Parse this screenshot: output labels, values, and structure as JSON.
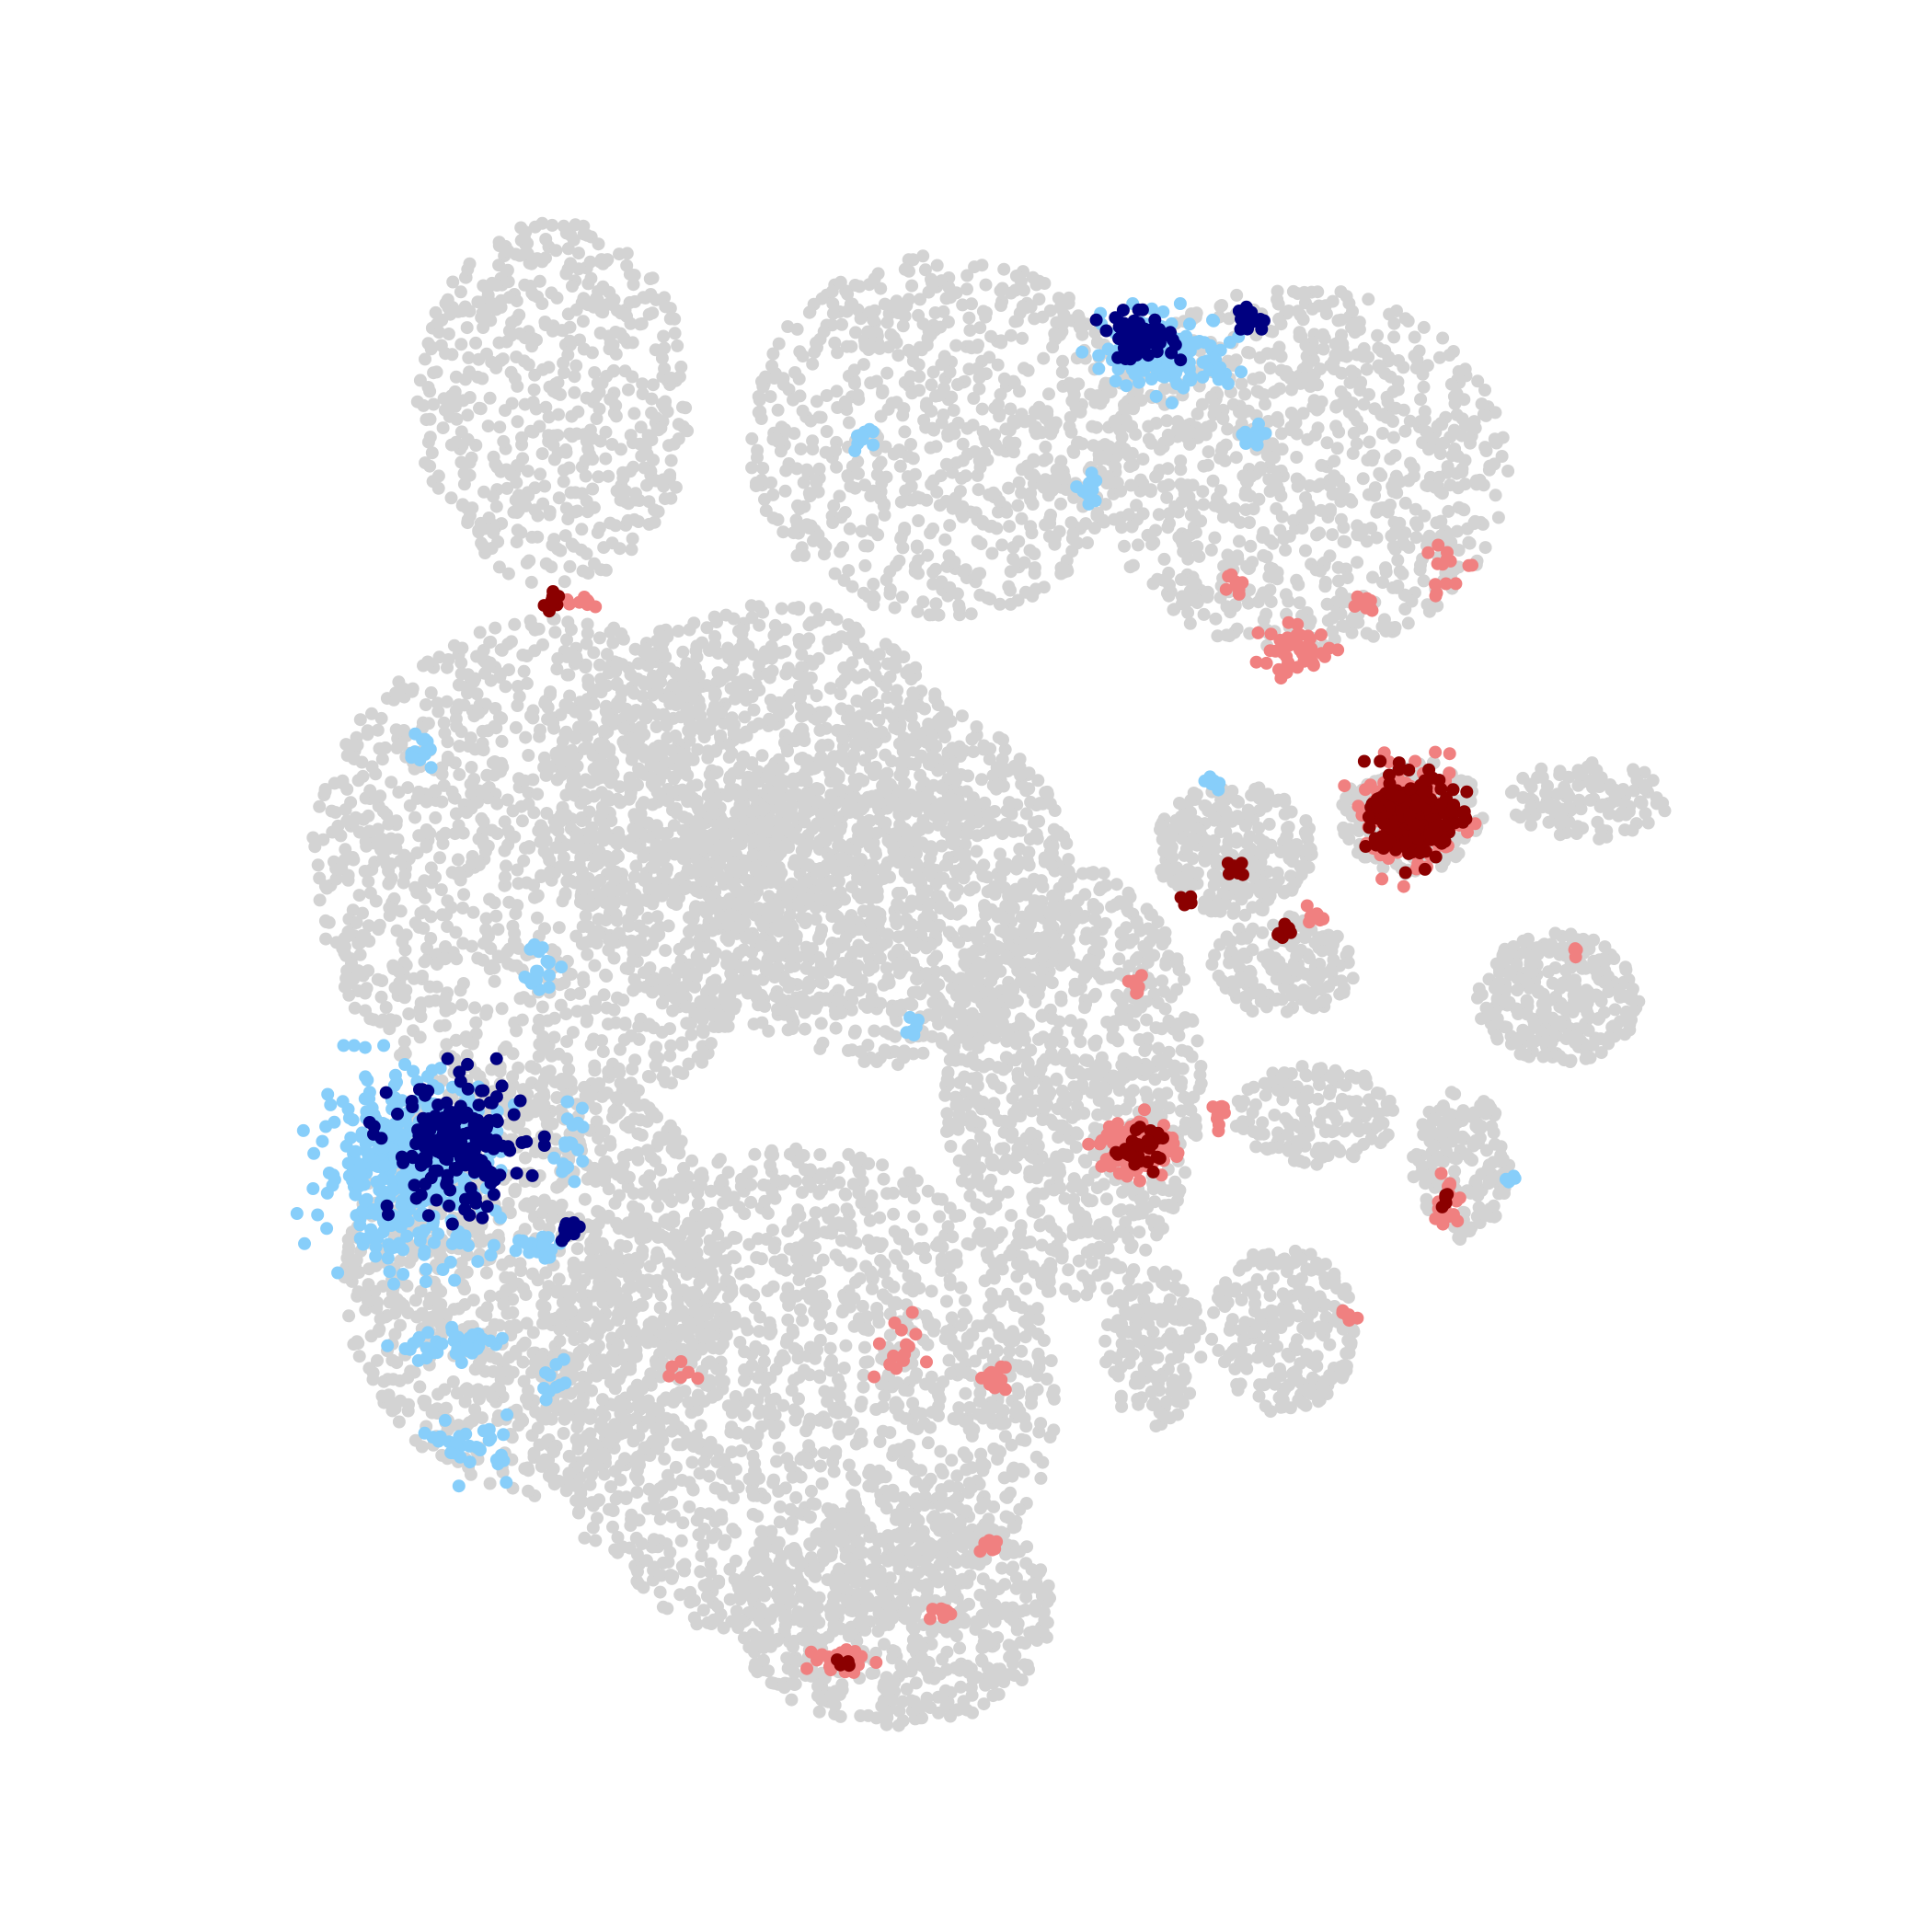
{
  "chart_data": {
    "type": "scatter",
    "title": "",
    "xlabel": "",
    "ylabel": "",
    "axes_visible": false,
    "grid": false,
    "legend": "none",
    "xlim": [
      0,
      100
    ],
    "ylim": [
      0,
      100
    ],
    "background": {
      "name": "background-cells",
      "color": "#d3d3d3",
      "regions": [
        {
          "id": "cluster-top-left",
          "cx": 24,
          "cy": 84,
          "rx": 8.5,
          "ry": 11,
          "n": 560
        },
        {
          "id": "cluster-top-middle",
          "cx": 48,
          "cy": 82,
          "rx": 12,
          "ry": 11,
          "n": 760
        },
        {
          "id": "cluster-top-right",
          "cx": 70,
          "cy": 80,
          "rx": 13,
          "ry": 11,
          "n": 880
        },
        {
          "id": "cluster-left-large",
          "cx": 24,
          "cy": 56,
          "rx": 15,
          "ry": 15,
          "n": 1300
        },
        {
          "id": "cluster-center",
          "cx": 37,
          "cy": 59,
          "rx": 13,
          "ry": 13,
          "n": 1200
        },
        {
          "id": "cluster-center-upper",
          "cx": 45,
          "cy": 55,
          "rx": 11,
          "ry": 11,
          "n": 880
        },
        {
          "id": "cluster-lower-left",
          "cx": 23,
          "cy": 31,
          "rx": 12,
          "ry": 13,
          "n": 1050
        },
        {
          "id": "cluster-lower-middle",
          "cx": 39,
          "cy": 24,
          "rx": 16,
          "ry": 15,
          "n": 1500
        },
        {
          "id": "cluster-bottom",
          "cx": 45,
          "cy": 11,
          "rx": 10,
          "ry": 7,
          "n": 650
        },
        {
          "id": "cluster-mid-right",
          "cx": 56,
          "cy": 43,
          "rx": 8,
          "ry": 13,
          "n": 900
        },
        {
          "id": "cluster-right-small-1",
          "cx": 66,
          "cy": 57,
          "rx": 5,
          "ry": 4,
          "n": 260
        },
        {
          "id": "cluster-right-small-2",
          "cx": 69,
          "cy": 50,
          "rx": 4.5,
          "ry": 3,
          "n": 160
        },
        {
          "id": "cluster-right-small-3",
          "cx": 71,
          "cy": 41,
          "rx": 5,
          "ry": 3,
          "n": 160
        },
        {
          "id": "cluster-right-small-4",
          "cx": 69,
          "cy": 28,
          "rx": 4.5,
          "ry": 5,
          "n": 240
        },
        {
          "id": "cluster-right-small-5",
          "cx": 61,
          "cy": 27,
          "rx": 3,
          "ry": 5,
          "n": 160
        },
        {
          "id": "cluster-right-blob",
          "cx": 77,
          "cy": 59,
          "rx": 4.5,
          "ry": 3.5,
          "n": 180
        },
        {
          "id": "cluster-far-right",
          "cx": 86,
          "cy": 48,
          "rx": 5,
          "ry": 4,
          "n": 280
        },
        {
          "id": "cluster-far-right-lower",
          "cx": 80,
          "cy": 38,
          "rx": 3,
          "ry": 4.5,
          "n": 170
        },
        {
          "id": "cluster-far-right-tail",
          "cx": 88,
          "cy": 60,
          "rx": 5,
          "ry": 2.5,
          "n": 120
        }
      ]
    },
    "series": [
      {
        "color": "#87cefa",
        "clusters": [
          {
            "cx": 15,
            "cy": 38,
            "rx": 6,
            "ry": 6,
            "n": 420
          },
          {
            "cx": 62,
            "cy": 87,
            "rx": 4.5,
            "ry": 2.5,
            "n": 140
          },
          {
            "cx": 23,
            "cy": 33,
            "rx": 2,
            "ry": 1,
            "n": 20
          },
          {
            "cx": 18,
            "cy": 27,
            "rx": 4,
            "ry": 1,
            "n": 40
          },
          {
            "cx": 19,
            "cy": 21,
            "rx": 2.5,
            "ry": 2,
            "n": 30
          },
          {
            "cx": 23,
            "cy": 50,
            "rx": 1.2,
            "ry": 1.8,
            "n": 20
          },
          {
            "cx": 16,
            "cy": 63,
            "rx": 1.2,
            "ry": 1.2,
            "n": 12
          },
          {
            "cx": 43,
            "cy": 82,
            "rx": 1,
            "ry": 1,
            "n": 10
          },
          {
            "cx": 57,
            "cy": 79,
            "rx": 1,
            "ry": 1,
            "n": 10
          },
          {
            "cx": 67,
            "cy": 82,
            "rx": 1,
            "ry": 1,
            "n": 10
          },
          {
            "cx": 65,
            "cy": 61,
            "rx": 1,
            "ry": 0.5,
            "n": 8
          },
          {
            "cx": 46,
            "cy": 46,
            "rx": 0.8,
            "ry": 0.8,
            "n": 6
          },
          {
            "cx": 24,
            "cy": 25,
            "rx": 1,
            "ry": 1.5,
            "n": 10
          },
          {
            "cx": 25,
            "cy": 39,
            "rx": 1,
            "ry": 3,
            "n": 20
          },
          {
            "cx": 83,
            "cy": 37,
            "rx": 0.5,
            "ry": 0.5,
            "n": 4
          }
        ]
      },
      {
        "color": "#000080",
        "clusters": [
          {
            "cx": 18,
            "cy": 39,
            "rx": 4.5,
            "ry": 4.5,
            "n": 180
          },
          {
            "cx": 25,
            "cy": 34,
            "rx": 0.7,
            "ry": 0.7,
            "n": 12
          },
          {
            "cx": 60,
            "cy": 88,
            "rx": 2.5,
            "ry": 1.5,
            "n": 60
          },
          {
            "cx": 67,
            "cy": 89,
            "rx": 1.2,
            "ry": 0.8,
            "n": 22
          }
        ]
      },
      {
        "color": "#f08080",
        "clusters": [
          {
            "cx": 60,
            "cy": 39,
            "rx": 2.5,
            "ry": 2,
            "n": 90
          },
          {
            "cx": 77,
            "cy": 59,
            "rx": 3.5,
            "ry": 3.5,
            "n": 120
          },
          {
            "cx": 70,
            "cy": 69,
            "rx": 3,
            "ry": 1.5,
            "n": 50
          },
          {
            "cx": 79,
            "cy": 36,
            "rx": 1,
            "ry": 2,
            "n": 20
          },
          {
            "cx": 42,
            "cy": 8,
            "rx": 2,
            "ry": 1,
            "n": 25
          },
          {
            "cx": 48,
            "cy": 11,
            "rx": 1,
            "ry": 0.5,
            "n": 10
          },
          {
            "cx": 51,
            "cy": 25,
            "rx": 1,
            "ry": 1,
            "n": 12
          },
          {
            "cx": 45,
            "cy": 27,
            "rx": 2,
            "ry": 2,
            "n": 16
          },
          {
            "cx": 65,
            "cy": 41,
            "rx": 0.8,
            "ry": 0.8,
            "n": 10
          },
          {
            "cx": 71,
            "cy": 53,
            "rx": 1,
            "ry": 0.6,
            "n": 8
          },
          {
            "cx": 79,
            "cy": 74,
            "rx": 2,
            "ry": 2,
            "n": 14
          },
          {
            "cx": 66,
            "cy": 73,
            "rx": 0.8,
            "ry": 0.8,
            "n": 8
          },
          {
            "cx": 60,
            "cy": 49,
            "rx": 0.5,
            "ry": 1,
            "n": 8
          },
          {
            "cx": 26,
            "cy": 72,
            "rx": 1,
            "ry": 0.5,
            "n": 10
          },
          {
            "cx": 51,
            "cy": 15,
            "rx": 0.6,
            "ry": 0.6,
            "n": 6
          },
          {
            "cx": 32,
            "cy": 26,
            "rx": 1.5,
            "ry": 1,
            "n": 6
          },
          {
            "cx": 73,
            "cy": 29,
            "rx": 0.5,
            "ry": 0.5,
            "n": 6
          },
          {
            "cx": 74,
            "cy": 72,
            "rx": 1,
            "ry": 0.6,
            "n": 8
          },
          {
            "cx": 87,
            "cy": 51,
            "rx": 0.5,
            "ry": 0.5,
            "n": 4
          }
        ]
      },
      {
        "color": "#8b0000",
        "clusters": [
          {
            "cx": 77,
            "cy": 59,
            "rx": 2.8,
            "ry": 2.8,
            "n": 240
          },
          {
            "cx": 60,
            "cy": 39,
            "rx": 1.5,
            "ry": 1.2,
            "n": 40
          },
          {
            "cx": 24,
            "cy": 72,
            "rx": 0.8,
            "ry": 0.6,
            "n": 10
          },
          {
            "cx": 66,
            "cy": 56,
            "rx": 0.6,
            "ry": 0.6,
            "n": 8
          },
          {
            "cx": 63,
            "cy": 54,
            "rx": 0.5,
            "ry": 0.5,
            "n": 6
          },
          {
            "cx": 69,
            "cy": 52,
            "rx": 0.6,
            "ry": 0.5,
            "n": 8
          },
          {
            "cx": 42,
            "cy": 8,
            "rx": 0.5,
            "ry": 0.4,
            "n": 5
          },
          {
            "cx": 79,
            "cy": 36,
            "rx": 0.5,
            "ry": 0.5,
            "n": 5
          }
        ]
      }
    ]
  }
}
